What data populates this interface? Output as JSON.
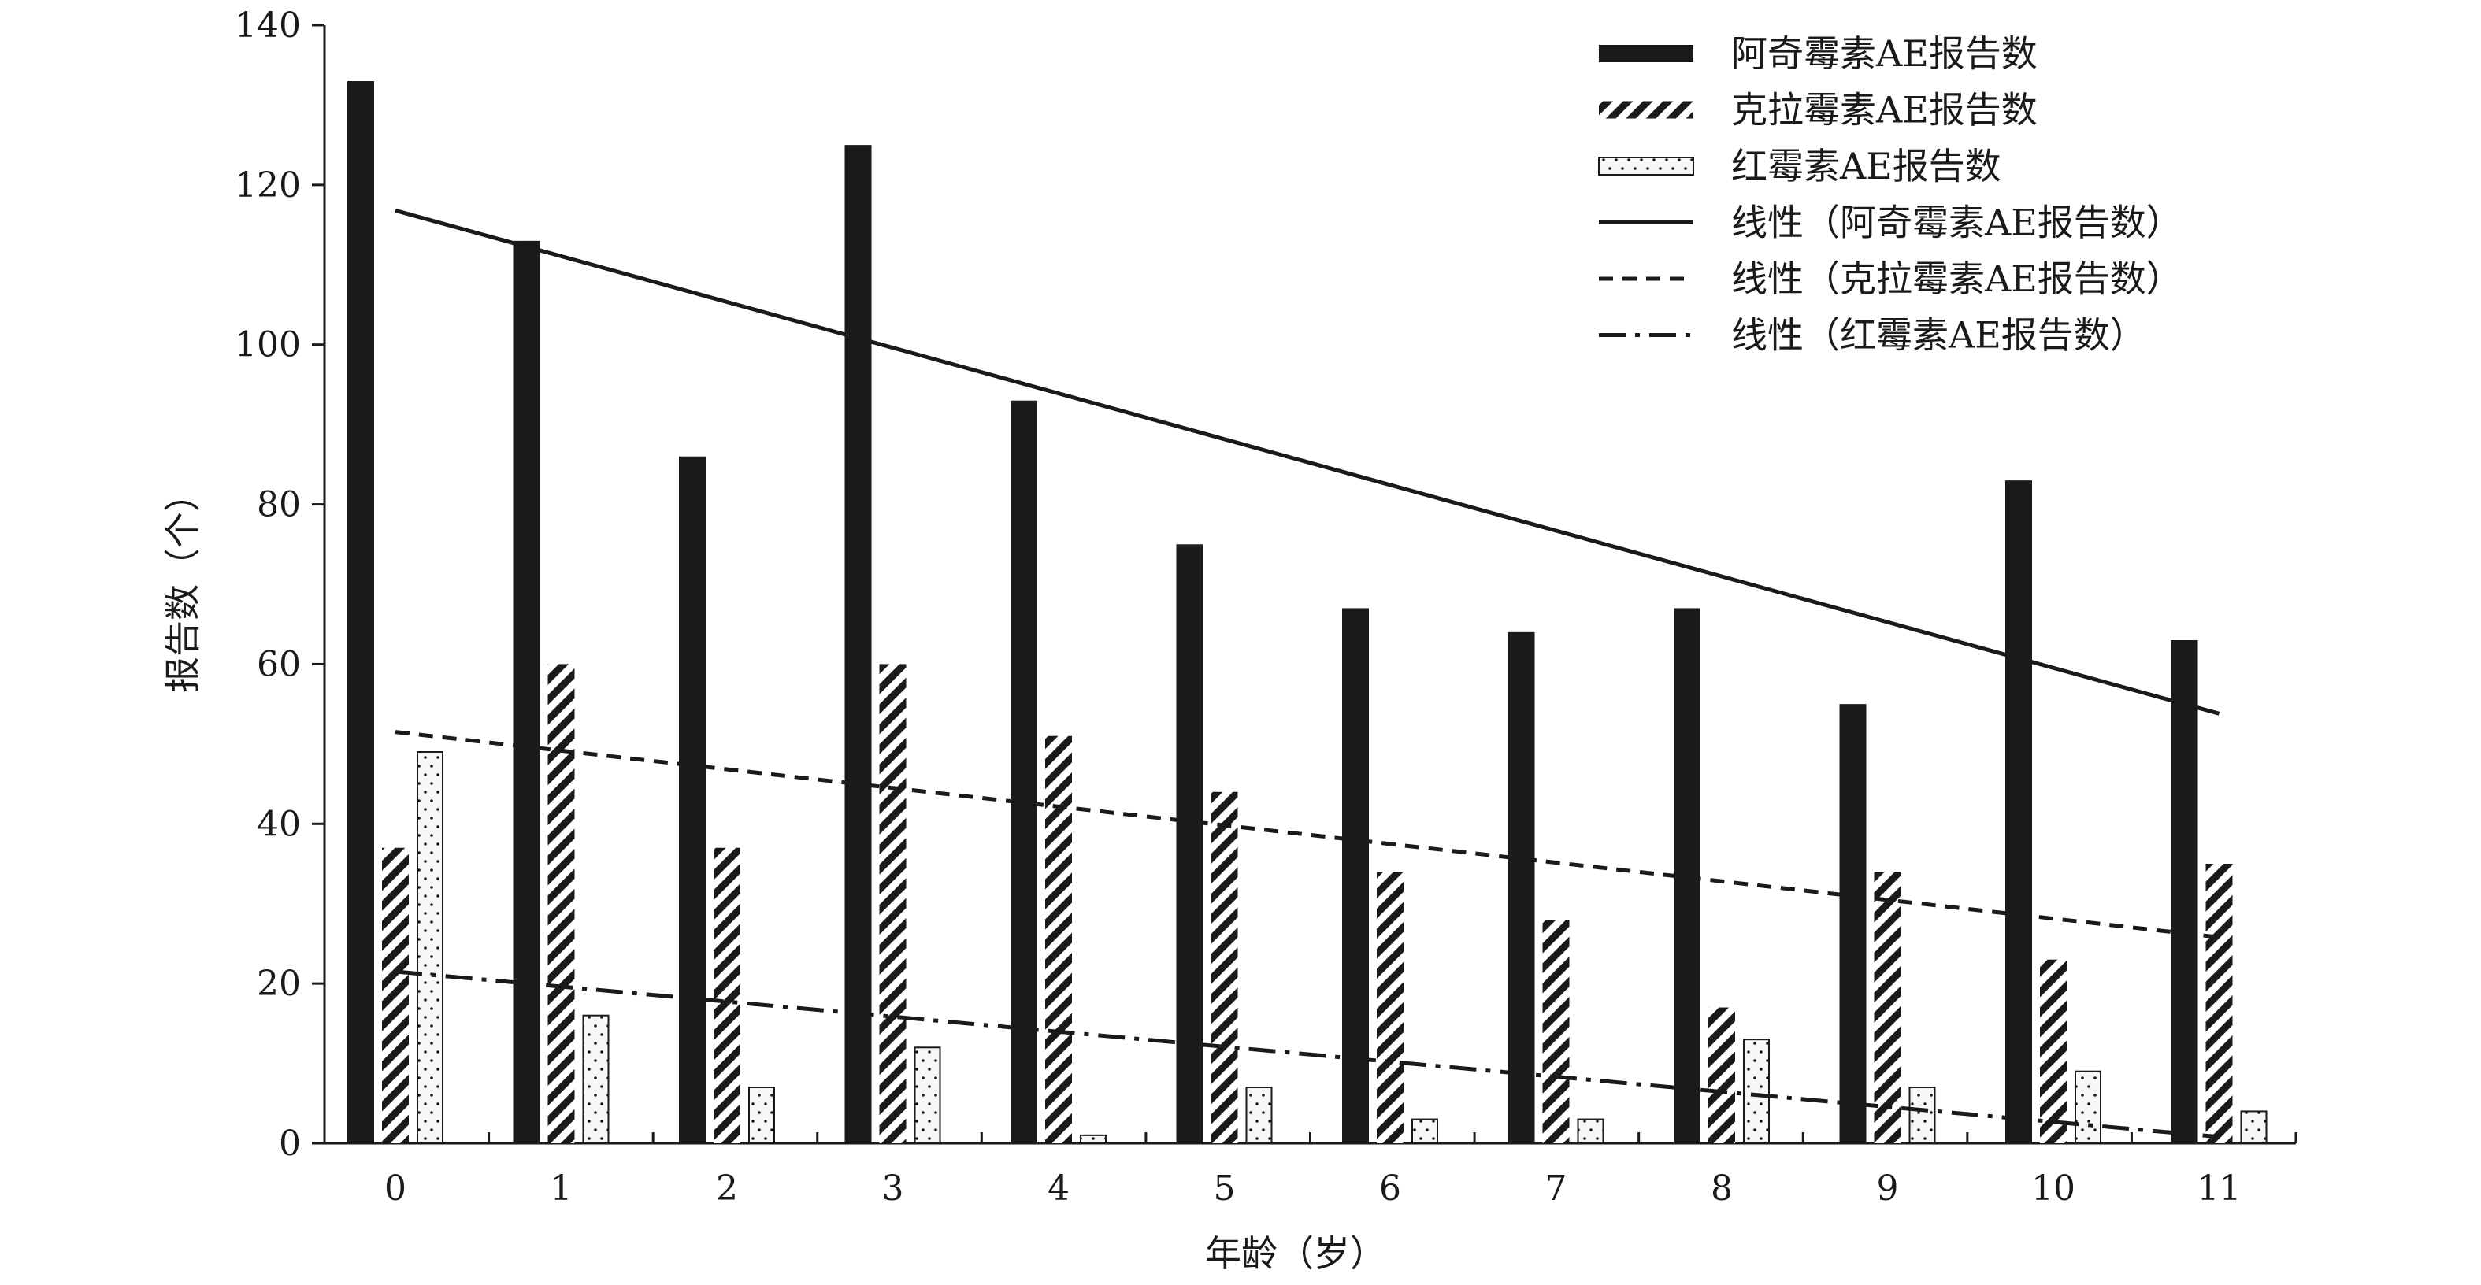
{
  "chart_data": {
    "type": "bar",
    "xlabel": "年龄（岁）",
    "ylabel": "报告数（个）",
    "categories": [
      "0",
      "1",
      "2",
      "3",
      "4",
      "5",
      "6",
      "7",
      "8",
      "9",
      "10",
      "11"
    ],
    "ylim": [
      0,
      140
    ],
    "yticks": [
      "0",
      "20",
      "40",
      "60",
      "80",
      "100",
      "120",
      "140"
    ],
    "series": [
      {
        "name": "阿奇霉素AE报告数",
        "style": "solid-black",
        "values": [
          133,
          113,
          86,
          125,
          93,
          75,
          67,
          64,
          67,
          55,
          83,
          63
        ]
      },
      {
        "name": "克拉霉素AE报告数",
        "style": "diagonal-hatch",
        "values": [
          37,
          60,
          37,
          60,
          51,
          44,
          34,
          28,
          17,
          34,
          23,
          35
        ]
      },
      {
        "name": "红霉素AE报告数",
        "style": "dotted",
        "values": [
          49,
          16,
          7,
          12,
          1,
          7,
          3,
          3,
          13,
          7,
          9,
          4
        ]
      }
    ],
    "trendlines": [
      {
        "name": "线性（阿奇霉素AE报告数）",
        "style": "solid",
        "start": 116.8,
        "end": 53.8
      },
      {
        "name": "线性（克拉霉素AE报告数）",
        "style": "dashed",
        "start": 51.5,
        "end": 25.8
      },
      {
        "name": "线性（红霉素AE报告数）",
        "style": "dash-dot",
        "start": 21.5,
        "end": 0.8
      }
    ],
    "legend_position": "top-right",
    "grid": false,
    "colors": {
      "ink": "#1a1a1a",
      "bar_fill": "#1a1a1a",
      "background": "#ffffff"
    }
  }
}
